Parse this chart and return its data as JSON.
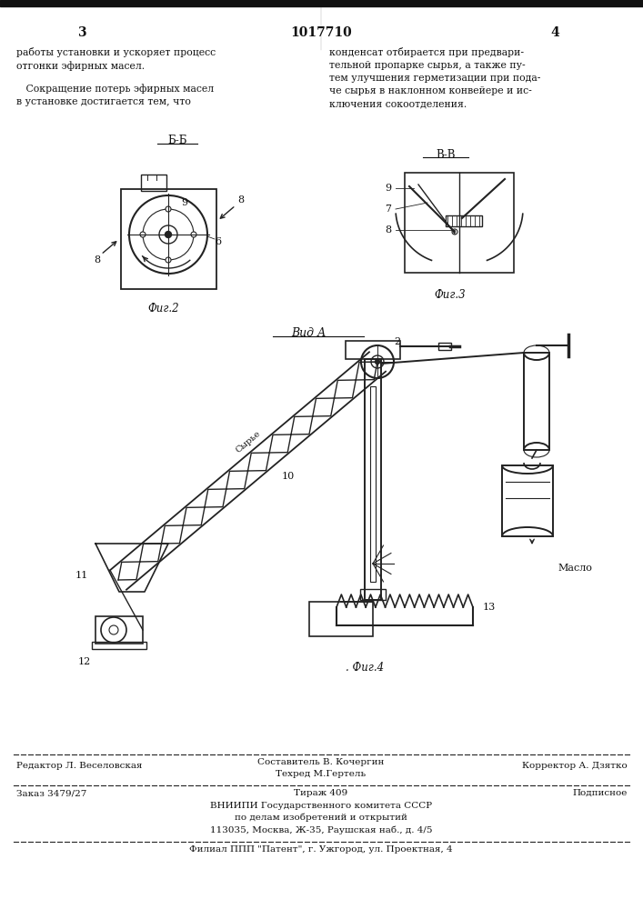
{
  "page_number_left": "3",
  "page_number_center": "1017710",
  "page_number_right": "4",
  "text_left_col": "работы установки и ускоряет процесс\nотгонки эфирных масел.\n\n   Сокращение потерь эфирных масел\nв установке достигается тем, что",
  "text_right_col": "конденсат отбирается при предвари-\nтельной пропарке сырья, а также пу-\nтем улучшения герметизации при пода-\nче сырья в наклонном конвейере и ис-\nключения сокоотделения.",
  "fig2_label": "Б-Б",
  "fig2_caption": "Фиг.2",
  "fig3_label": "В-В",
  "fig3_caption": "Фиг.3",
  "fig4_caption": "Вид А",
  "fig4_label": "Фиг.4",
  "footer_line1_left": "Редактор Л. Веселовская",
  "footer_line1_center_top": "Составитель В. Кочергин",
  "footer_line1_center_bot": "Техред М.Гертель",
  "footer_line1_right": "Корректор А. Дзятко",
  "footer_line2_left": "Заказ 3479/27",
  "footer_line2_center": "Тираж 409",
  "footer_line2_right": "Подписное",
  "footer_org1": "ВНИИПИ Государственного комитета СССР",
  "footer_org2": "по делам изобретений и открытий",
  "footer_org3": "113035, Москва, Ж-35, Раушская наб., д. 4/5",
  "footer_affiliate": "Филиал ППП \"Патент\", г. Ужгород, ул. Проектная, 4",
  "bg_color": "#ffffff",
  "line_color": "#222222",
  "text_color": "#111111"
}
